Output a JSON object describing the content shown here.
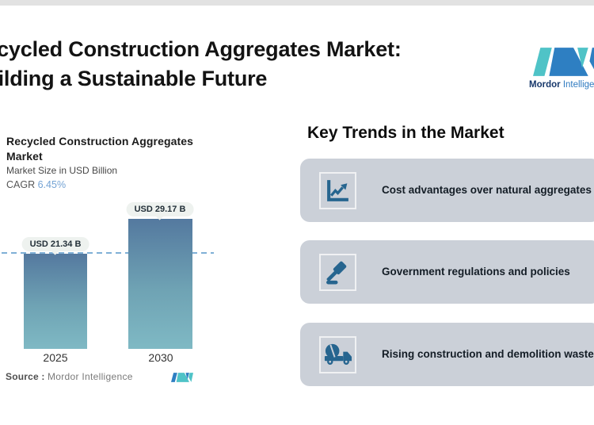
{
  "header": {
    "title_line1": "Recycled Construction Aggregates Market:",
    "title_line2": "Building a Sustainable Future"
  },
  "brand": {
    "name_bold": "Mordor",
    "name_light": "Intelligence",
    "mark_teal": "#4fc3c7",
    "mark_blue": "#2e7fc2"
  },
  "chart": {
    "title": "Recycled Construction Aggregates Market",
    "subtitle": "Market Size in USD Billion",
    "cagr_label": "CAGR",
    "cagr_value": "6.45%",
    "source_label": "Source :",
    "source_value": "Mordor Intelligence"
  },
  "chart_data": {
    "type": "bar",
    "title": "Recycled Construction Aggregates Market",
    "ylabel": "Market Size in USD Billion",
    "cagr": "6.45%",
    "categories": [
      "2025",
      "2030"
    ],
    "values": [
      21.34,
      29.17
    ],
    "value_labels": [
      "USD 21.34 B",
      "USD 29.17 B"
    ],
    "reference_line_at": 21.34,
    "grid": "off",
    "bar_gradient_top": "#54799f",
    "bar_gradient_bottom": "#7fb9c4",
    "reference_line_color": "#7fb0d6"
  },
  "trends": {
    "heading": "Key Trends in the Market",
    "items": [
      {
        "icon": "trend-chart-icon",
        "text": "Cost advantages over natural aggregates"
      },
      {
        "icon": "gavel-icon",
        "text": "Government regulations and policies"
      },
      {
        "icon": "mixer-truck-icon",
        "text": "Rising construction and demolition waste"
      }
    ],
    "card_bg": "#cbd0d8",
    "icon_color": "#26658f"
  }
}
